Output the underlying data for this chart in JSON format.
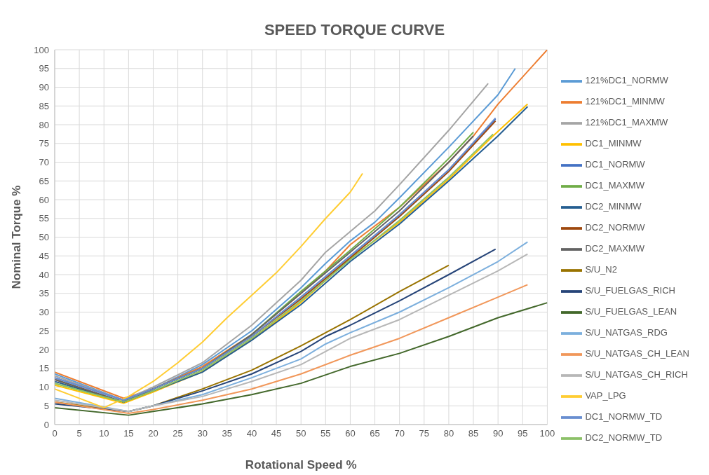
{
  "chart_data": {
    "type": "line",
    "title": "SPEED TORQUE CURVE",
    "xlabel": "Rotational Speed %",
    "ylabel": "Nominal Torque %",
    "xlim": [
      0,
      100
    ],
    "ylim": [
      0,
      100
    ],
    "xticks": [
      0,
      5,
      10,
      15,
      20,
      25,
      30,
      35,
      40,
      45,
      50,
      55,
      60,
      65,
      70,
      75,
      80,
      85,
      90,
      95,
      100
    ],
    "yticks": [
      0,
      5,
      10,
      15,
      20,
      25,
      30,
      35,
      40,
      45,
      50,
      55,
      60,
      65,
      70,
      75,
      80,
      85,
      90,
      95,
      100
    ],
    "grid": true,
    "legend": "right",
    "marker": "none",
    "line_style": "solid",
    "series": [
      {
        "name": "121%DC1_NORMW",
        "color": "#5b9bd5",
        "x": [
          0,
          14,
          20,
          30,
          40,
          50,
          55,
          60,
          65,
          70,
          80,
          90,
          93.5
        ],
        "values": [
          13.5,
          6.5,
          9.5,
          16,
          25,
          36.5,
          43,
          49,
          54,
          60.5,
          74,
          88,
          95
        ]
      },
      {
        "name": "121%DC1_MINMW",
        "color": "#ed7d31",
        "x": [
          0,
          14,
          20,
          30,
          40,
          50,
          55,
          60,
          65,
          70,
          80,
          85,
          90,
          100
        ],
        "values": [
          14,
          7,
          9.5,
          15.5,
          24,
          35,
          41,
          48,
          53,
          58,
          70,
          77,
          85.5,
          100
        ]
      },
      {
        "name": "121%DC1_MAXMW",
        "color": "#a5a5a5",
        "x": [
          0,
          14,
          20,
          30,
          40,
          50,
          55,
          60,
          65,
          70,
          80,
          88
        ],
        "values": [
          13,
          6.5,
          10,
          16.5,
          26.5,
          38.5,
          46,
          51.5,
          57,
          64,
          78.5,
          91
        ]
      },
      {
        "name": "DC1_MINMW",
        "color": "#ffc000",
        "x": [
          0,
          14,
          20,
          30,
          40,
          50,
          60,
          70,
          80,
          89,
          96
        ],
        "values": [
          10.5,
          5.7,
          8.7,
          14.1,
          22.6,
          32.6,
          44.3,
          54,
          65.5,
          77,
          85.5
        ]
      },
      {
        "name": "DC1_NORMW",
        "color": "#4472c4",
        "x": [
          0,
          14,
          20,
          30,
          40,
          50,
          60,
          70,
          80,
          89.5
        ],
        "values": [
          12.5,
          6.5,
          9.5,
          15,
          23.5,
          34,
          45,
          56,
          68,
          81.5
        ]
      },
      {
        "name": "DC1_MAXMW",
        "color": "#70ad47",
        "x": [
          0,
          14,
          20,
          30,
          40,
          50,
          55,
          60,
          70,
          80,
          85
        ],
        "values": [
          11,
          6,
          9.5,
          15,
          24,
          35.5,
          41,
          46.5,
          58,
          71,
          78
        ]
      },
      {
        "name": "DC2_MINMW",
        "color": "#255e91",
        "x": [
          0,
          14,
          20,
          30,
          40,
          50,
          60,
          70,
          80,
          90,
          96
        ],
        "values": [
          11.5,
          6,
          9,
          14,
          22.5,
          32,
          43.5,
          53.5,
          65,
          77,
          84.8
        ]
      },
      {
        "name": "DC2_NORMW",
        "color": "#9e480e",
        "x": [
          0,
          14,
          20,
          30,
          40,
          50,
          60,
          70,
          80,
          89.5
        ],
        "values": [
          12,
          6,
          9.5,
          15,
          23.5,
          33.5,
          44.5,
          55.5,
          67.5,
          81
        ]
      },
      {
        "name": "DC2_MAXMW",
        "color": "#636363",
        "x": [
          0,
          14,
          20,
          30,
          40,
          50,
          60,
          70,
          80,
          85
        ],
        "values": [
          12,
          6,
          9.5,
          15,
          24,
          35,
          46,
          57,
          70,
          77
        ]
      },
      {
        "name": "S/U_N2",
        "color": "#997300",
        "x": [
          0,
          15,
          20,
          30,
          40,
          50,
          55,
          60,
          70,
          80
        ],
        "values": [
          6,
          3.5,
          5,
          9.5,
          14.5,
          21,
          24.5,
          28,
          35.5,
          42.5
        ]
      },
      {
        "name": "S/U_FUELGAS_RICH",
        "color": "#264478",
        "x": [
          0,
          15,
          20,
          30,
          40,
          50,
          55,
          60,
          70,
          80,
          89.5
        ],
        "values": [
          5.5,
          3.5,
          5,
          9,
          13.5,
          19.5,
          23.5,
          26.5,
          33,
          40,
          46.8
        ]
      },
      {
        "name": "S/U_FUELGAS_LEAN",
        "color": "#43682b",
        "x": [
          0,
          15,
          20,
          30,
          40,
          50,
          60,
          70,
          80,
          90,
          100
        ],
        "values": [
          4.5,
          2.5,
          3.5,
          5.5,
          8,
          11,
          15.5,
          19,
          23.5,
          28.5,
          32.5
        ]
      },
      {
        "name": "S/U_NATGAS_RDG",
        "color": "#7cafdd",
        "x": [
          0,
          15,
          20,
          30,
          40,
          50,
          55,
          60,
          70,
          80,
          90,
          96
        ],
        "values": [
          7,
          3.5,
          5,
          8,
          12.5,
          17.5,
          21.5,
          24.5,
          30,
          36.5,
          43.5,
          48.7
        ]
      },
      {
        "name": "S/U_NATGAS_CH_LEAN",
        "color": "#f1975a",
        "x": [
          0,
          15,
          20,
          30,
          40,
          50,
          60,
          70,
          80,
          90,
          96
        ],
        "values": [
          6,
          3,
          4,
          6.5,
          9.5,
          13.5,
          18.5,
          23,
          28.5,
          34,
          37.3
        ]
      },
      {
        "name": "S/U_NATGAS_CH_RICH",
        "color": "#b7b7b7",
        "x": [
          0,
          15,
          20,
          30,
          40,
          50,
          60,
          70,
          80,
          90,
          96
        ],
        "values": [
          6.5,
          3.5,
          5,
          7.5,
          11.5,
          16,
          23,
          28,
          34.5,
          41,
          45.5
        ]
      },
      {
        "name": "VAP_LPG",
        "color": "#ffcd33",
        "x": [
          0,
          10,
          15,
          20,
          25,
          30,
          35,
          40,
          45,
          50,
          55,
          60,
          62.5
        ],
        "values": [
          9.5,
          4.5,
          7.5,
          11.5,
          16.5,
          22,
          28.5,
          34.5,
          40.5,
          47.5,
          55,
          62,
          67
        ]
      },
      {
        "name": "DC1_NORMW_TD",
        "color": "#698ed0",
        "x": [
          0,
          14,
          20,
          30,
          40,
          50,
          60,
          70,
          80,
          89.5
        ],
        "values": [
          12.5,
          6.5,
          9.5,
          15,
          23.5,
          34,
          45,
          56,
          68,
          81.8
        ]
      },
      {
        "name": "DC2_NORMW_TD",
        "color": "#8cc168",
        "x": [
          0,
          14,
          20,
          30,
          40,
          50,
          60,
          70,
          80,
          89
        ],
        "values": [
          11,
          6,
          9,
          14.5,
          23,
          33,
          44,
          54.5,
          66,
          77.5
        ]
      }
    ]
  }
}
